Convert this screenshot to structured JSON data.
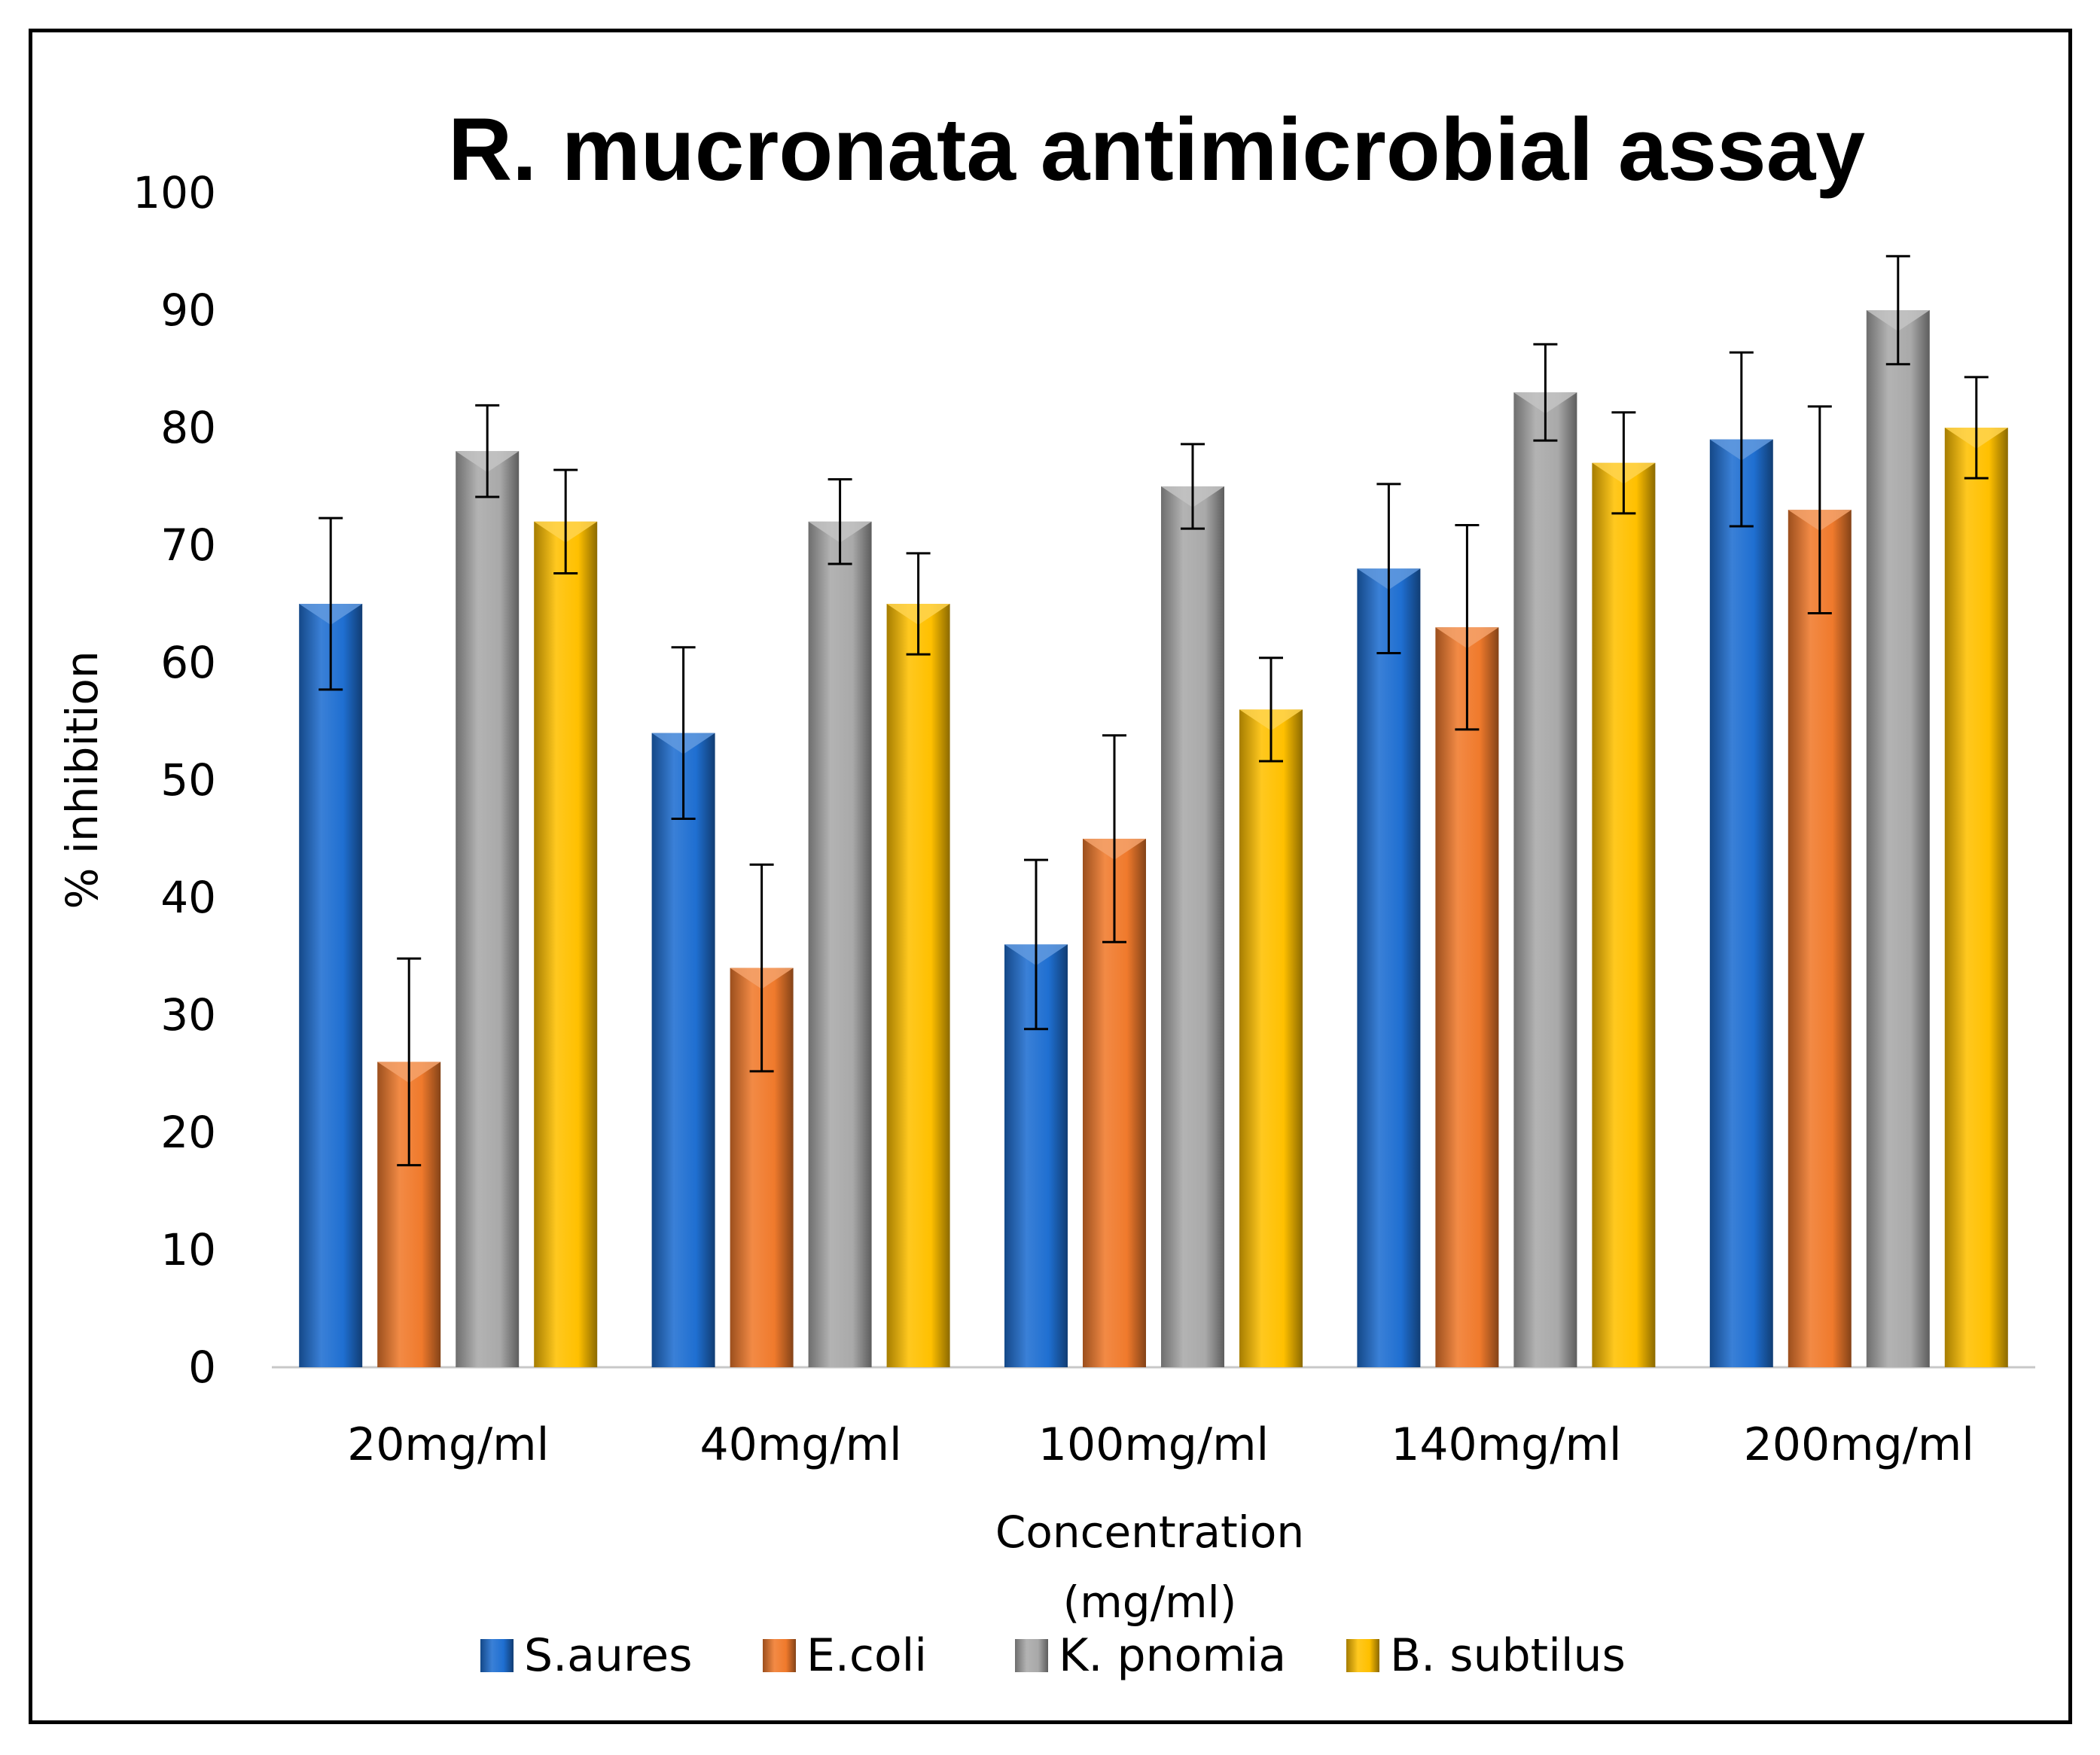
{
  "chart_data": {
    "type": "bar",
    "title": "R. mucronata antimicrobial assay",
    "xlabel": "Concentration (mg/ml)",
    "xlabel_lines": [
      "Concentration",
      "(mg/ml)"
    ],
    "ylabel": "% inhibition",
    "ylim": [
      0,
      100
    ],
    "yticks": [
      "0",
      "10",
      "20",
      "30",
      "40",
      "50",
      "60",
      "70",
      "80",
      "90",
      "100"
    ],
    "grid": false,
    "legend_position": "bottom",
    "categories": [
      "20mg/ml",
      "40mg/ml",
      "100mg/ml",
      "140mg/ml",
      "200mg/ml"
    ],
    "series": [
      {
        "name": "S.aures",
        "color": "#1f6fd1",
        "values": [
          65,
          54,
          36,
          68,
          79
        ],
        "errors": [
          7.3,
          7.3,
          7.2,
          7.2,
          7.4
        ]
      },
      {
        "name": "E.coli",
        "color": "#f07a2c",
        "values": [
          26,
          34,
          45,
          63,
          73
        ],
        "errors": [
          8.8,
          8.8,
          8.8,
          8.7,
          8.8
        ]
      },
      {
        "name": "K. pnomia",
        "color": "#a9a9a9",
        "values": [
          78,
          72,
          75,
          83,
          90
        ],
        "errors": [
          3.9,
          3.6,
          3.6,
          4.1,
          4.6
        ]
      },
      {
        "name": "B. subtilus",
        "color": "#ffc000",
        "values": [
          72,
          65,
          56,
          77,
          80
        ],
        "errors": [
          4.4,
          4.3,
          4.4,
          4.3,
          4.3
        ]
      }
    ]
  }
}
